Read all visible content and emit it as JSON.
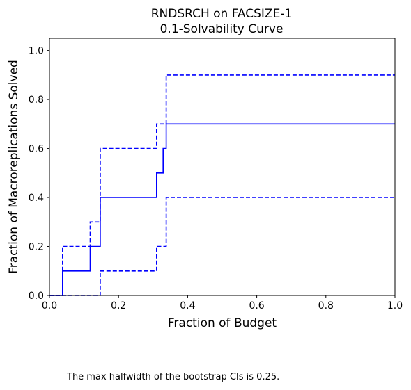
{
  "chart_data": {
    "type": "line",
    "title": "RNDSRCH on FACSIZE-1",
    "subtitle": "0.1-Solvability Curve",
    "xlabel": "Fraction of Budget",
    "ylabel": "Fraction of Macroreplications Solved",
    "xlim": [
      0.0,
      1.0
    ],
    "ylim": [
      0.0,
      1.05
    ],
    "xticks": [
      "0.0",
      "0.2",
      "0.4",
      "0.6",
      "0.8",
      "1.0"
    ],
    "yticks": [
      "0.0",
      "0.2",
      "0.4",
      "0.6",
      "0.8",
      "1.0"
    ],
    "grid": false,
    "line_color": "#0000ff",
    "series": [
      {
        "style": "solid",
        "x": [
          0.0,
          0.038,
          0.038,
          0.118,
          0.118,
          0.147,
          0.147,
          0.31,
          0.31,
          0.329,
          0.329,
          0.338,
          0.338,
          1.0
        ],
        "y": [
          0.0,
          0.0,
          0.1,
          0.1,
          0.2,
          0.2,
          0.4,
          0.4,
          0.5,
          0.5,
          0.6,
          0.6,
          0.7,
          0.7
        ]
      },
      {
        "style": "dashed",
        "x": [
          0.0,
          0.038,
          0.038,
          0.118,
          0.118,
          0.147,
          0.147,
          0.31,
          0.31,
          0.338,
          0.338,
          1.0
        ],
        "y": [
          0.0,
          0.0,
          0.2,
          0.2,
          0.3,
          0.3,
          0.6,
          0.6,
          0.7,
          0.7,
          0.9,
          0.9
        ]
      },
      {
        "style": "dashed",
        "x": [
          0.0,
          0.147,
          0.147,
          0.31,
          0.31,
          0.338,
          0.338,
          1.0
        ],
        "y": [
          0.0,
          0.0,
          0.1,
          0.1,
          0.2,
          0.2,
          0.4,
          0.4
        ]
      }
    ]
  },
  "footnote": "The max halfwidth of the bootstrap CIs is 0.25."
}
